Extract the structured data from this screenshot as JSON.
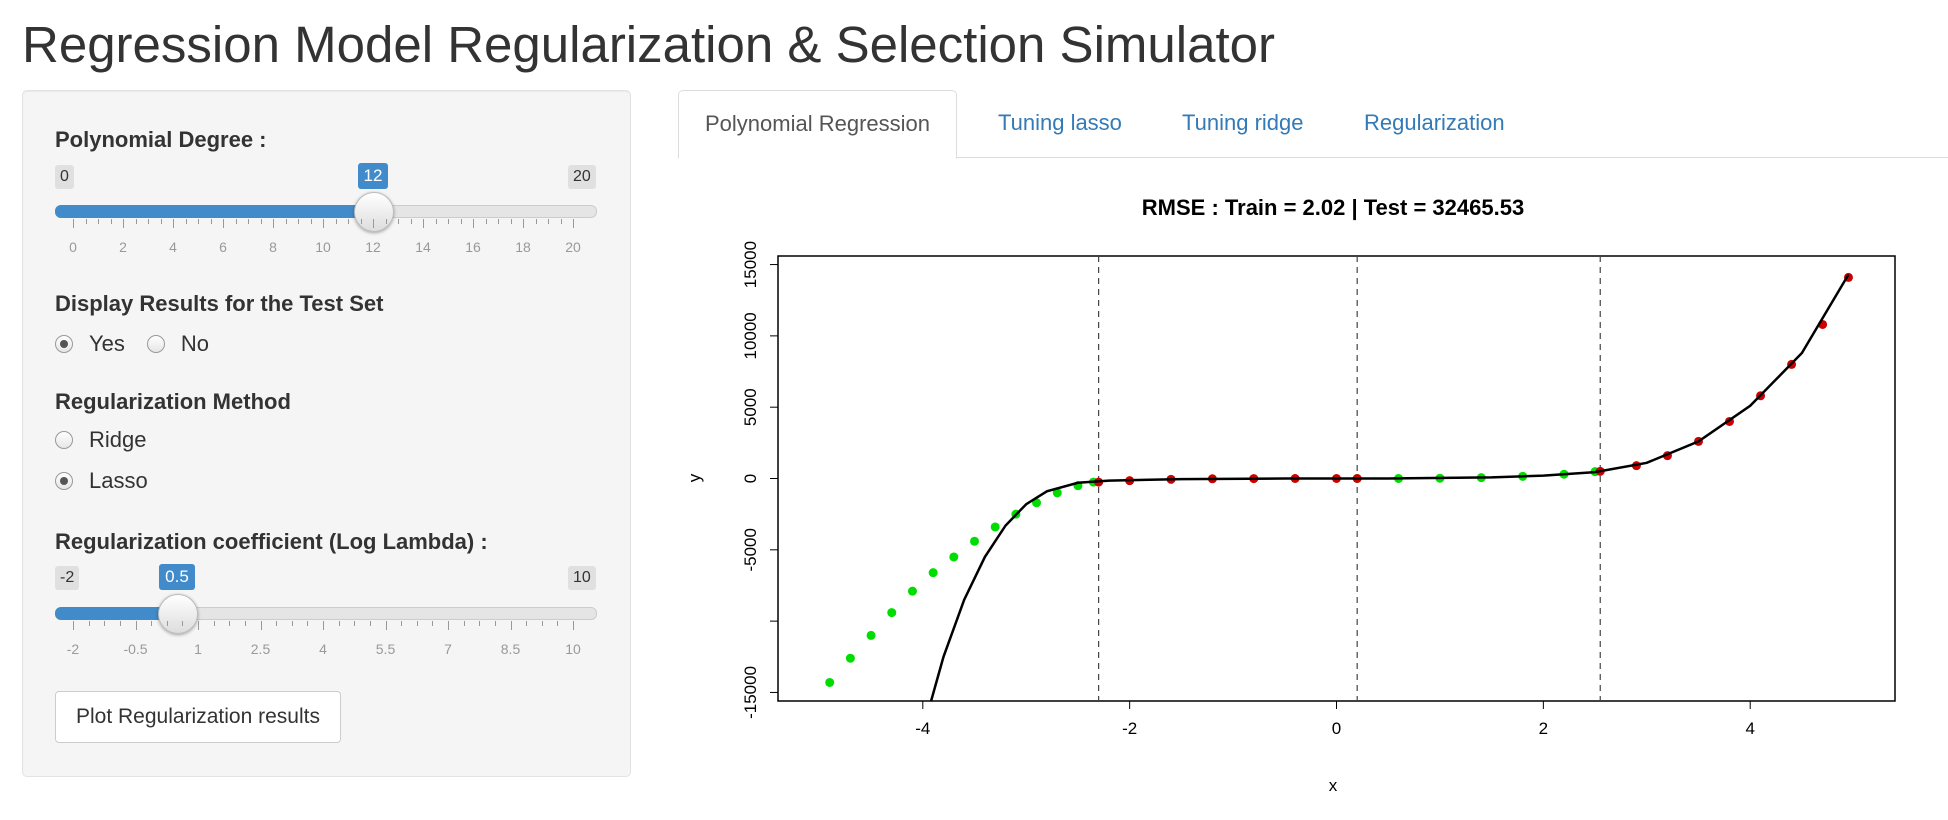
{
  "title": "Regression Model Regularization & Selection Simulator",
  "sidebar": {
    "degree": {
      "label": "Polynomial Degree :",
      "min_label": "0",
      "max_label": "20",
      "value_label": "12",
      "min": 0,
      "max": 20,
      "value": 12,
      "ticks": [
        "0",
        "2",
        "4",
        "6",
        "8",
        "10",
        "12",
        "14",
        "16",
        "18",
        "20"
      ]
    },
    "test_set": {
      "label": "Display Results for the Test Set",
      "options": [
        "Yes",
        "No"
      ],
      "selected": "Yes"
    },
    "method": {
      "label": "Regularization Method",
      "options": [
        "Ridge",
        "Lasso"
      ],
      "selected": "Lasso"
    },
    "lambda": {
      "label": "Regularization coefficient (Log Lambda) :",
      "min_label": "-2",
      "max_label": "10",
      "value_label": "0.5",
      "min": -2,
      "max": 10,
      "value": 0.5,
      "ticks": [
        "-2",
        "-0.5",
        "1",
        "2.5",
        "4",
        "5.5",
        "7",
        "8.5",
        "10"
      ]
    },
    "plot_button": "Plot Regularization results"
  },
  "tabs": [
    "Polynomial Regression",
    "Tuning lasso",
    "Tuning ridge",
    "Regularization"
  ],
  "active_tab": "Polynomial Regression",
  "chart_data": {
    "type": "scatter",
    "title": "RMSE : Train =  2.02 | Test =  32465.53",
    "xlabel": "x",
    "ylabel": "y",
    "xlim": [
      -5.4,
      5.4
    ],
    "ylim": [
      -15600,
      15600
    ],
    "x_ticks": [
      -4,
      -2,
      0,
      2,
      4
    ],
    "y_ticks": [
      -15000,
      -5000,
      0,
      5000,
      10000,
      15000
    ],
    "y_minor_ticks": [
      -10000
    ],
    "vlines": [
      -2.3,
      0.2,
      2.55
    ],
    "series": [
      {
        "color": "#00dd00",
        "points": [
          [
            -4.9,
            -14300
          ],
          [
            -4.7,
            -12600
          ],
          [
            -4.5,
            -11000
          ],
          [
            -4.3,
            -9400
          ],
          [
            -4.1,
            -7900
          ],
          [
            -3.9,
            -6600
          ],
          [
            -3.7,
            -5500
          ],
          [
            -3.5,
            -4400
          ],
          [
            -3.3,
            -3400
          ],
          [
            -3.1,
            -2500
          ],
          [
            -2.9,
            -1700
          ],
          [
            -2.7,
            -1000
          ],
          [
            -2.5,
            -500
          ],
          [
            -2.35,
            -250
          ],
          [
            0.2,
            0
          ],
          [
            0.6,
            0
          ],
          [
            1.0,
            20
          ],
          [
            1.4,
            60
          ],
          [
            1.8,
            150
          ],
          [
            2.2,
            300
          ],
          [
            2.5,
            480
          ]
        ]
      },
      {
        "color": "#cc0000",
        "points": [
          [
            -2.3,
            -250
          ],
          [
            -2.0,
            -150
          ],
          [
            -1.6,
            -60
          ],
          [
            -1.2,
            -20
          ],
          [
            -0.8,
            -5
          ],
          [
            -0.4,
            0
          ],
          [
            0.0,
            0
          ],
          [
            0.2,
            0
          ],
          [
            2.55,
            500
          ],
          [
            2.9,
            900
          ],
          [
            3.2,
            1600
          ],
          [
            3.5,
            2600
          ],
          [
            3.8,
            4000
          ],
          [
            4.1,
            5800
          ],
          [
            4.4,
            8000
          ],
          [
            4.7,
            10800
          ],
          [
            4.95,
            14100
          ]
        ]
      }
    ],
    "fit_line": [
      [
        -3.92,
        -15600
      ],
      [
        -3.8,
        -12500
      ],
      [
        -3.6,
        -8500
      ],
      [
        -3.4,
        -5500
      ],
      [
        -3.2,
        -3300
      ],
      [
        -3.0,
        -1800
      ],
      [
        -2.8,
        -900
      ],
      [
        -2.5,
        -300
      ],
      [
        -2.2,
        -150
      ],
      [
        -1.5,
        -40
      ],
      [
        -0.5,
        0
      ],
      [
        0.5,
        0
      ],
      [
        1.5,
        80
      ],
      [
        2.0,
        200
      ],
      [
        2.5,
        450
      ],
      [
        3.0,
        1100
      ],
      [
        3.5,
        2600
      ],
      [
        4.0,
        5100
      ],
      [
        4.5,
        8800
      ],
      [
        4.95,
        14300
      ]
    ]
  }
}
